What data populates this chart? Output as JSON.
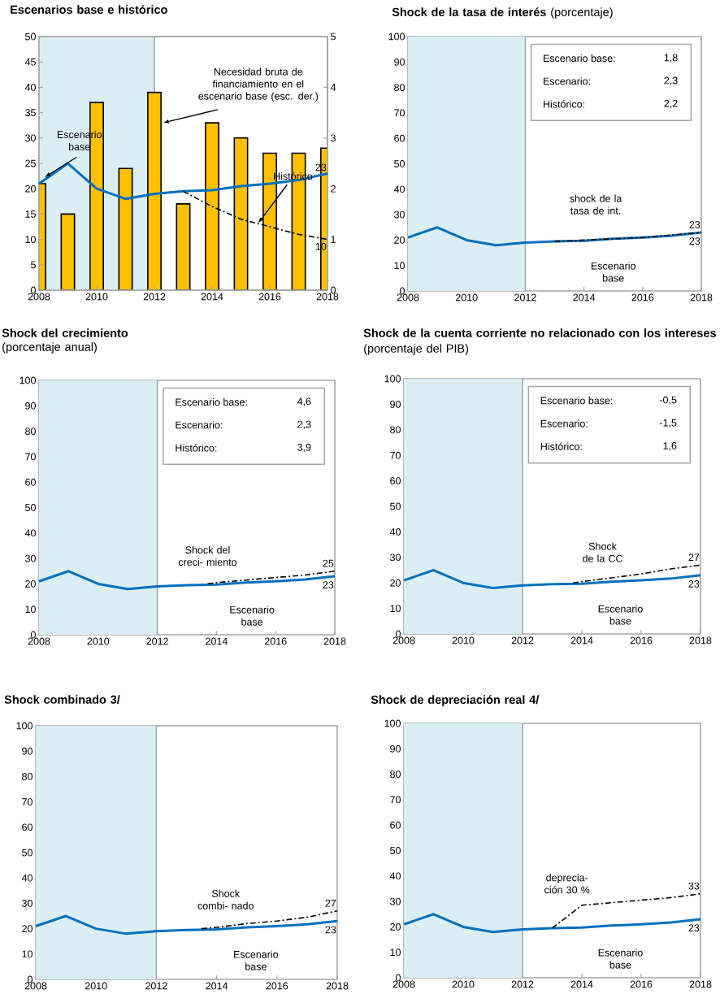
{
  "chart_data": [
    {
      "type": "line",
      "title": "Escenarios base e histórico",
      "xlim": [
        2008,
        2018
      ],
      "xticks": [
        2008,
        2010,
        2012,
        2014,
        2016,
        2018
      ],
      "ylim": [
        0,
        50
      ],
      "yticks": [
        0,
        5,
        10,
        15,
        20,
        25,
        30,
        35,
        40,
        45,
        50
      ],
      "y2lim": [
        0,
        5
      ],
      "y2ticks": [
        0,
        1,
        2,
        3,
        4,
        5
      ],
      "bands": [
        {
          "axis": "x",
          "from": 2008,
          "to": 2012,
          "color": "#daeef3"
        }
      ],
      "ref_lines": [
        {
          "axis": "x",
          "value": 2012,
          "color": "#a6a6a6"
        }
      ],
      "series": [
        {
          "name": "Necesidad bruta de financiamiento en el escenario base (esc. der.)",
          "type": "bar",
          "axis": "y2",
          "color": "#ffc000",
          "x": [
            2008,
            2009,
            2010,
            2011,
            2012,
            2013,
            2014,
            2015,
            2016,
            2017,
            2018
          ],
          "values": [
            2.1,
            1.5,
            3.7,
            2.4,
            3.9,
            1.7,
            3.3,
            3.0,
            2.7,
            2.7,
            2.8
          ]
        },
        {
          "name": "Escenario base",
          "color": "#0070c0",
          "line_style": "solid",
          "x": [
            2008,
            2009,
            2010,
            2011,
            2012,
            2013,
            2014,
            2015,
            2016,
            2017,
            2018
          ],
          "values": [
            21,
            25,
            20,
            18,
            19,
            19.5,
            19.7,
            20.5,
            21,
            21.7,
            23
          ],
          "value_labels": [
            null,
            null,
            null,
            null,
            null,
            null,
            null,
            null,
            null,
            null,
            "23"
          ]
        },
        {
          "name": "Histórico",
          "color": "#000000",
          "line_style": "dashdot",
          "x": [
            2013,
            2014,
            2015,
            2016,
            2017,
            2018
          ],
          "values": [
            19.5,
            16.5,
            14,
            12.5,
            11,
            10
          ],
          "value_labels": [
            null,
            null,
            null,
            null,
            null,
            "10"
          ]
        }
      ]
    },
    {
      "type": "line",
      "title": "**Shock de la tasa de interés** (porcentaje)",
      "xlim": [
        2008,
        2018
      ],
      "xticks": [
        2008,
        2010,
        2012,
        2014,
        2016,
        2018
      ],
      "ylim": [
        0,
        100
      ],
      "yticks": [
        0,
        10,
        20,
        30,
        40,
        50,
        60,
        70,
        80,
        90,
        100
      ],
      "bands": [
        {
          "axis": "x",
          "from": 2008,
          "to": 2012,
          "color": "#daeef3"
        }
      ],
      "ref_lines": [
        {
          "axis": "x",
          "value": 2012,
          "color": "#a6a6a6"
        }
      ],
      "annotations": [
        "Escenario base:",
        "1,8",
        "Escenario:",
        "2,3",
        "Histórico:",
        "2,2"
      ],
      "series": [
        {
          "name": "Escenario base",
          "color": "#0070c0",
          "line_style": "solid",
          "x": [
            2008,
            2009,
            2010,
            2011,
            2012,
            2013,
            2014,
            2015,
            2016,
            2017,
            2018
          ],
          "values": [
            21,
            25,
            20,
            18,
            19,
            19.5,
            19.7,
            20.5,
            21,
            21.7,
            23
          ],
          "value_labels": [
            null,
            null,
            null,
            null,
            null,
            null,
            null,
            null,
            null,
            null,
            "23"
          ]
        },
        {
          "name": "shock de la tasa de int.",
          "color": "#000000",
          "line_style": "dashdot",
          "x": [
            2013,
            2014,
            2015,
            2016,
            2017,
            2018
          ],
          "values": [
            19.5,
            20,
            20.5,
            21,
            22,
            23
          ],
          "value_labels": [
            null,
            null,
            null,
            null,
            null,
            "23"
          ]
        }
      ]
    },
    {
      "type": "line",
      "title": "Shock del crecimiento",
      "subtitle": "(porcentaje anual)",
      "xlim": [
        2008,
        2018
      ],
      "xticks": [
        2008,
        2010,
        2012,
        2014,
        2016,
        2018
      ],
      "ylim": [
        0,
        100
      ],
      "yticks": [
        0,
        10,
        20,
        30,
        40,
        50,
        60,
        70,
        80,
        90,
        100
      ],
      "bands": [
        {
          "axis": "x",
          "from": 2008,
          "to": 2012,
          "color": "#daeef3"
        }
      ],
      "ref_lines": [
        {
          "axis": "x",
          "value": 2012,
          "color": "#a6a6a6"
        }
      ],
      "annotations": [
        "Escenario base:",
        "4,6",
        "Escenario:",
        "2,3",
        "Histórico:",
        "3,9"
      ],
      "series": [
        {
          "name": "Escenario base",
          "color": "#0070c0",
          "line_style": "solid",
          "x": [
            2008,
            2009,
            2010,
            2011,
            2012,
            2013,
            2014,
            2015,
            2016,
            2017,
            2018
          ],
          "values": [
            21,
            25,
            20,
            18,
            19,
            19.5,
            19.7,
            20.5,
            21,
            21.7,
            23
          ],
          "value_labels": [
            null,
            null,
            null,
            null,
            null,
            null,
            null,
            null,
            null,
            null,
            "23"
          ]
        },
        {
          "name": "Shock del creci- miento",
          "color": "#000000",
          "line_style": "dashdot",
          "x": [
            2013.7,
            2014,
            2015,
            2016,
            2017,
            2018
          ],
          "values": [
            20,
            20.5,
            21.5,
            22.5,
            23.5,
            25
          ],
          "value_labels": [
            null,
            null,
            null,
            null,
            null,
            "25"
          ]
        }
      ]
    },
    {
      "type": "line",
      "title": "**Shock de la cuenta corriente no relacionado con los intereses** (porcentaje del PIB)",
      "xlim": [
        2008,
        2018
      ],
      "xticks": [
        2008,
        2010,
        2012,
        2014,
        2016,
        2018
      ],
      "ylim": [
        0,
        100
      ],
      "yticks": [
        0,
        10,
        20,
        30,
        40,
        50,
        60,
        70,
        80,
        90,
        100
      ],
      "bands": [
        {
          "axis": "x",
          "from": 2008,
          "to": 2012,
          "color": "#daeef3"
        }
      ],
      "ref_lines": [
        {
          "axis": "x",
          "value": 2012,
          "color": "#a6a6a6"
        }
      ],
      "annotations": [
        "Escenario base:",
        "-0,5",
        "Escenario:",
        "-1,5",
        "Histórico:",
        "1,6"
      ],
      "series": [
        {
          "name": "Escenario base",
          "color": "#0070c0",
          "line_style": "solid",
          "x": [
            2008,
            2009,
            2010,
            2011,
            2012,
            2013,
            2014,
            2015,
            2016,
            2017,
            2018
          ],
          "values": [
            21,
            25,
            20,
            18,
            19,
            19.5,
            19.7,
            20.5,
            21,
            21.7,
            23
          ],
          "value_labels": [
            null,
            null,
            null,
            null,
            null,
            null,
            null,
            null,
            null,
            null,
            "23"
          ]
        },
        {
          "name": "Shock de la CC",
          "color": "#000000",
          "line_style": "dashdot",
          "x": [
            2013.7,
            2014,
            2015,
            2016,
            2017,
            2018
          ],
          "values": [
            20,
            20.5,
            22,
            23.5,
            25.5,
            27
          ],
          "value_labels": [
            null,
            null,
            null,
            null,
            null,
            "27"
          ]
        }
      ]
    },
    {
      "type": "line",
      "title": "Shock combinado  3/",
      "xlim": [
        2008,
        2018
      ],
      "xticks": [
        2008,
        2010,
        2012,
        2014,
        2016,
        2018
      ],
      "ylim": [
        0,
        100
      ],
      "yticks": [
        0,
        10,
        20,
        30,
        40,
        50,
        60,
        70,
        80,
        90,
        100
      ],
      "bands": [
        {
          "axis": "x",
          "from": 2008,
          "to": 2012,
          "color": "#daeef3"
        }
      ],
      "ref_lines": [
        {
          "axis": "x",
          "value": 2012,
          "color": "#a6a6a6"
        }
      ],
      "series": [
        {
          "name": "Escenario base",
          "color": "#0070c0",
          "line_style": "solid",
          "x": [
            2008,
            2009,
            2010,
            2011,
            2012,
            2013,
            2014,
            2015,
            2016,
            2017,
            2018
          ],
          "values": [
            21,
            25,
            20,
            18,
            19,
            19.5,
            19.7,
            20.5,
            21,
            21.7,
            23
          ],
          "value_labels": [
            null,
            null,
            null,
            null,
            null,
            null,
            null,
            null,
            null,
            null,
            "23"
          ]
        },
        {
          "name": "Shock combi- nado",
          "color": "#000000",
          "line_style": "dashdot",
          "x": [
            2013.5,
            2014,
            2015,
            2016,
            2017,
            2018
          ],
          "values": [
            20,
            20.5,
            22,
            23,
            24.5,
            27
          ],
          "value_labels": [
            null,
            null,
            null,
            null,
            null,
            "27"
          ]
        }
      ]
    },
    {
      "type": "line",
      "title": "Shock de depreciación real  4/",
      "xlim": [
        2008,
        2018
      ],
      "xticks": [
        2008,
        2010,
        2012,
        2014,
        2016,
        2018
      ],
      "ylim": [
        0,
        100
      ],
      "yticks": [
        0,
        10,
        20,
        30,
        40,
        50,
        60,
        70,
        80,
        90,
        100
      ],
      "bands": [
        {
          "axis": "x",
          "from": 2008,
          "to": 2012,
          "color": "#daeef3"
        }
      ],
      "ref_lines": [
        {
          "axis": "x",
          "value": 2012,
          "color": "#a6a6a6"
        }
      ],
      "series": [
        {
          "name": "Escenario base",
          "color": "#0070c0",
          "line_style": "solid",
          "x": [
            2008,
            2009,
            2010,
            2011,
            2012,
            2013,
            2014,
            2015,
            2016,
            2017,
            2018
          ],
          "values": [
            21,
            25,
            20,
            18,
            19,
            19.5,
            19.7,
            20.5,
            21,
            21.7,
            23
          ],
          "value_labels": [
            null,
            null,
            null,
            null,
            null,
            null,
            null,
            null,
            null,
            null,
            "23"
          ]
        },
        {
          "name": "deprecia- ción 30 %",
          "color": "#000000",
          "line_style": "dashdot",
          "x": [
            2013,
            2014,
            2015,
            2016,
            2017,
            2018
          ],
          "values": [
            19.5,
            28.5,
            29.5,
            30.5,
            31.5,
            33
          ],
          "value_labels": [
            null,
            null,
            null,
            null,
            null,
            "33"
          ]
        }
      ]
    }
  ]
}
